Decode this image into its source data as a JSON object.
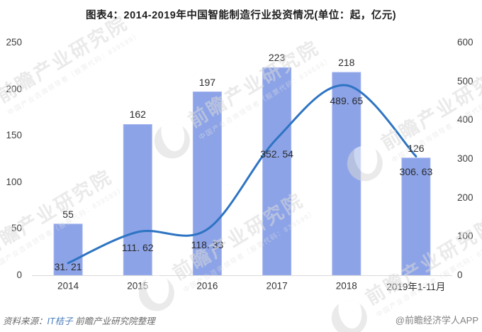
{
  "chart_data": {
    "type": "bar+line",
    "title": "图表4：2014-2019年中国智能制造行业投资情况(单位：起，亿元)",
    "categories": [
      "2014",
      "2015",
      "2016",
      "2017",
      "2018",
      "2019年1-11月"
    ],
    "series": [
      {
        "id": "investment-count",
        "unit": "起",
        "chart": "bar",
        "axis": "left",
        "values": [
          55,
          162,
          197,
          223,
          218,
          126
        ],
        "labels": [
          "55",
          "162",
          "197",
          "223",
          "218",
          "126"
        ],
        "color": "#8ca3e8"
      },
      {
        "id": "investment-amount",
        "unit": "亿元",
        "chart": "line",
        "axis": "right",
        "values": [
          31.21,
          111.62,
          118.33,
          352.54,
          489.65,
          306.63
        ],
        "labels": [
          "31. 21",
          "111. 62",
          "118. 33",
          "352. 54",
          "489. 65",
          "306. 63"
        ],
        "color": "#2e74c3"
      }
    ],
    "left_axis": {
      "ticks": [
        0,
        50,
        100,
        150,
        200,
        250
      ],
      "min": 0,
      "max": 250
    },
    "right_axis": {
      "ticks": [
        0,
        100,
        200,
        300,
        400,
        500,
        600
      ],
      "min": 0,
      "max": 600
    },
    "grid": false,
    "legend": "none"
  },
  "watermark": {
    "logo": "qianzhan-circle-logo",
    "text_large": "前瞻产业研究院",
    "text_small": "中国产业咨询领导者（股票代码：839599）"
  },
  "footer": {
    "source_prefix": "资料来源：",
    "source_link": "IT桔子",
    "source_suffix": " 前瞻产业研究院整理",
    "brand": "@前瞻经济学人APP"
  },
  "colors": {
    "bar": "#8ca3e8",
    "bar_border": "#a5b6ee",
    "line": "#2e74c3",
    "axis_line": "#d9d9d9",
    "text": "#333333",
    "watermark": "#d9d9d9"
  }
}
